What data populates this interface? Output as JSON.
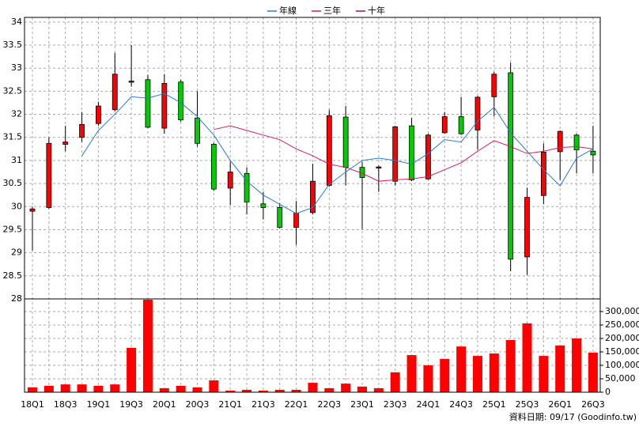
{
  "chart_data": [
    {
      "type": "candlestick",
      "categories": [
        "18Q1",
        null,
        "18Q3",
        null,
        "19Q1",
        null,
        "19Q3",
        null,
        "20Q1",
        null,
        "20Q3",
        null,
        "21Q1",
        null,
        "21Q3",
        null,
        "22Q1",
        null,
        "22Q3",
        null,
        "23Q1",
        null,
        "23Q3",
        null,
        "24Q1",
        null,
        "24Q3",
        null,
        "25Q1",
        null,
        "25Q3",
        null,
        "26Q1",
        null,
        "26Q3"
      ],
      "open": [
        29.9,
        29.98,
        31.35,
        31.5,
        31.8,
        32.1,
        32.7,
        32.75,
        31.7,
        32.7,
        31.92,
        31.35,
        30.4,
        30.72,
        30.06,
        29.98,
        29.55,
        29.87,
        30.46,
        31.94,
        30.85,
        30.84,
        30.55,
        31.75,
        30.6,
        31.6,
        31.95,
        31.66,
        32.38,
        32.9,
        28.91,
        30.24,
        31.19,
        31.55,
        31.2
      ],
      "high": [
        30.0,
        31.5,
        31.75,
        32.05,
        32.27,
        33.33,
        33.5,
        32.85,
        32.87,
        32.75,
        32.5,
        31.38,
        30.97,
        30.85,
        30.32,
        30.07,
        30.12,
        30.93,
        32.1,
        32.18,
        30.97,
        30.89,
        31.75,
        31.92,
        31.58,
        32.05,
        32.38,
        32.4,
        32.92,
        33.12,
        30.41,
        31.37,
        31.65,
        31.58,
        31.75
      ],
      "low": [
        29.05,
        29.95,
        31.2,
        31.4,
        31.75,
        32.06,
        32.6,
        31.7,
        31.58,
        31.84,
        31.3,
        30.34,
        30.03,
        29.83,
        29.72,
        29.52,
        29.17,
        29.83,
        30.43,
        30.46,
        29.51,
        30.32,
        30.46,
        30.55,
        30.58,
        31.58,
        31.55,
        31.23,
        31.95,
        28.6,
        28.52,
        30.06,
        30.58,
        30.72,
        30.72
      ],
      "close": [
        29.95,
        31.37,
        31.4,
        31.78,
        32.18,
        32.87,
        32.72,
        31.72,
        32.67,
        31.88,
        31.37,
        30.38,
        30.75,
        30.1,
        29.98,
        29.55,
        29.86,
        30.55,
        31.97,
        30.85,
        30.63,
        30.86,
        31.73,
        30.58,
        31.55,
        31.95,
        31.58,
        32.37,
        32.87,
        28.86,
        30.2,
        31.18,
        31.63,
        31.23,
        31.12
      ],
      "up_color": "#ff0000",
      "down_color": "#00cc00",
      "series": [
        {
          "name": "年線",
          "color": "#2a7ad8",
          "values": [
            null,
            null,
            null,
            31.1,
            31.65,
            32.0,
            32.38,
            32.35,
            32.45,
            32.25,
            31.95,
            31.55,
            31.0,
            30.55,
            30.25,
            30.05,
            29.85,
            29.98,
            30.48,
            30.75,
            31.0,
            31.05,
            31.0,
            30.92,
            31.15,
            31.45,
            31.4,
            31.85,
            32.15,
            31.6,
            31.2,
            30.8,
            30.45,
            31.05,
            31.25
          ]
        },
        {
          "name": "三年",
          "color": "#d81b60",
          "values": [
            null,
            null,
            null,
            null,
            null,
            null,
            null,
            null,
            null,
            null,
            null,
            31.67,
            31.75,
            31.65,
            31.55,
            31.45,
            31.25,
            31.1,
            30.92,
            30.85,
            30.72,
            30.55,
            30.58,
            30.6,
            30.65,
            30.8,
            30.95,
            31.2,
            31.43,
            31.3,
            31.15,
            31.2,
            31.28,
            31.3,
            31.25
          ]
        },
        {
          "name": "十年",
          "color": "#8e1b6b",
          "values": [
            null,
            null,
            null,
            null,
            null,
            null,
            null,
            null,
            null,
            null,
            null,
            null,
            null,
            null,
            null,
            null,
            null,
            null,
            null,
            null,
            null,
            null,
            null,
            null,
            null,
            null,
            null,
            null,
            null,
            null,
            null,
            null,
            null,
            null,
            null
          ]
        }
      ],
      "ylim": [
        28,
        34.1
      ],
      "yticks": [
        28,
        28.5,
        29,
        29.5,
        30,
        30.5,
        31,
        31.5,
        32,
        32.5,
        33,
        33.5,
        34
      ],
      "grid": true
    },
    {
      "type": "bar",
      "values": [
        18000,
        24000,
        29000,
        29000,
        24000,
        29000,
        165000,
        344000,
        15000,
        24000,
        18000,
        44000,
        6000,
        9000,
        6000,
        9000,
        9000,
        35000,
        15000,
        32000,
        21000,
        15000,
        74000,
        138000,
        100000,
        124000,
        170000,
        135000,
        144000,
        194000,
        256000,
        135000,
        174000,
        200000,
        147000
      ],
      "color": "#ff0000",
      "ylim": [
        0,
        347000
      ],
      "yticks": [
        0,
        {
          "value": 50000,
          "label": "50,000"
        },
        {
          "value": 100000,
          "label": "100,000"
        },
        {
          "value": 150000,
          "label": "150,000"
        },
        {
          "value": 200000,
          "label": "200,000"
        },
        {
          "value": 250000,
          "label": "250,000"
        },
        {
          "value": 300000,
          "label": "300,000"
        }
      ],
      "grid": true,
      "source": "資料日期: 09/17  (Goodinfo.tw)"
    }
  ]
}
